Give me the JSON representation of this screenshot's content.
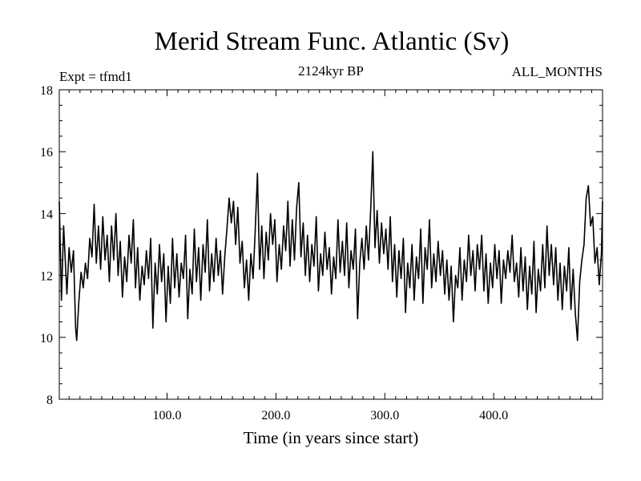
{
  "chart_data": {
    "type": "line",
    "title": "Merid Stream Func. Atlantic (Sv)",
    "subtitle_left": "Expt = tfmd1",
    "subtitle_center": "2124kyr BP",
    "subtitle_right": "ALL_MONTHS",
    "xlabel": "Time (in years since start)",
    "ylabel": "",
    "xlim": [
      1,
      500
    ],
    "ylim": [
      8,
      18
    ],
    "xticks": [
      100,
      200,
      300,
      400
    ],
    "xtick_labels": [
      "100.0",
      "200.0",
      "300.0",
      "400.0"
    ],
    "yticks": [
      8,
      10,
      12,
      14,
      16,
      18
    ],
    "ytick_labels": [
      "8",
      "10",
      "12",
      "14",
      "16",
      "18"
    ],
    "series": [
      {
        "name": "Merid Stream Func. Atlantic",
        "color": "#000000",
        "points": [
          [
            1,
            14.4
          ],
          [
            3,
            11.2
          ],
          [
            5,
            13.6
          ],
          [
            8,
            11.4
          ],
          [
            10,
            12.9
          ],
          [
            12,
            12.1
          ],
          [
            14,
            12.8
          ],
          [
            16,
            10.3
          ],
          [
            17,
            9.9
          ],
          [
            19,
            11.2
          ],
          [
            21,
            12.1
          ],
          [
            23,
            11.6
          ],
          [
            25,
            12.4
          ],
          [
            27,
            11.9
          ],
          [
            29,
            13.2
          ],
          [
            31,
            12.6
          ],
          [
            33,
            14.3
          ],
          [
            35,
            12.4
          ],
          [
            37,
            13.6
          ],
          [
            39,
            12.2
          ],
          [
            41,
            13.9
          ],
          [
            43,
            12.5
          ],
          [
            45,
            13.3
          ],
          [
            47,
            11.8
          ],
          [
            49,
            13.6
          ],
          [
            51,
            12.5
          ],
          [
            53,
            14.0
          ],
          [
            55,
            12.0
          ],
          [
            57,
            13.1
          ],
          [
            59,
            11.3
          ],
          [
            61,
            12.6
          ],
          [
            63,
            11.8
          ],
          [
            65,
            13.3
          ],
          [
            67,
            12.4
          ],
          [
            69,
            13.8
          ],
          [
            71,
            11.6
          ],
          [
            73,
            12.9
          ],
          [
            75,
            11.2
          ],
          [
            77,
            12.3
          ],
          [
            79,
            11.7
          ],
          [
            81,
            12.8
          ],
          [
            83,
            11.9
          ],
          [
            85,
            13.2
          ],
          [
            87,
            10.3
          ],
          [
            89,
            12.4
          ],
          [
            91,
            11.4
          ],
          [
            93,
            13.0
          ],
          [
            95,
            11.8
          ],
          [
            97,
            12.7
          ],
          [
            99,
            10.5
          ],
          [
            101,
            12.3
          ],
          [
            103,
            11.1
          ],
          [
            105,
            13.2
          ],
          [
            107,
            11.6
          ],
          [
            109,
            12.7
          ],
          [
            111,
            11.3
          ],
          [
            113,
            12.4
          ],
          [
            115,
            11.9
          ],
          [
            117,
            13.3
          ],
          [
            119,
            10.6
          ],
          [
            121,
            12.2
          ],
          [
            123,
            11.4
          ],
          [
            125,
            13.5
          ],
          [
            127,
            11.8
          ],
          [
            129,
            12.9
          ],
          [
            131,
            11.2
          ],
          [
            133,
            13.0
          ],
          [
            135,
            12.1
          ],
          [
            137,
            13.8
          ],
          [
            139,
            11.5
          ],
          [
            141,
            12.7
          ],
          [
            143,
            11.8
          ],
          [
            145,
            13.2
          ],
          [
            147,
            12.0
          ],
          [
            149,
            12.8
          ],
          [
            151,
            11.4
          ],
          [
            153,
            12.6
          ],
          [
            155,
            13.5
          ],
          [
            157,
            14.5
          ],
          [
            159,
            13.7
          ],
          [
            161,
            14.4
          ],
          [
            163,
            13.0
          ],
          [
            165,
            14.2
          ],
          [
            167,
            12.4
          ],
          [
            169,
            13.1
          ],
          [
            171,
            11.6
          ],
          [
            173,
            12.5
          ],
          [
            175,
            11.2
          ],
          [
            177,
            12.7
          ],
          [
            179,
            11.9
          ],
          [
            181,
            13.5
          ],
          [
            183,
            15.3
          ],
          [
            185,
            12.2
          ],
          [
            187,
            13.6
          ],
          [
            189,
            11.9
          ],
          [
            191,
            13.4
          ],
          [
            193,
            12.5
          ],
          [
            195,
            14.0
          ],
          [
            197,
            13.0
          ],
          [
            199,
            13.8
          ],
          [
            201,
            11.8
          ],
          [
            203,
            13.0
          ],
          [
            205,
            12.2
          ],
          [
            207,
            13.6
          ],
          [
            209,
            12.8
          ],
          [
            211,
            14.4
          ],
          [
            213,
            12.3
          ],
          [
            215,
            13.8
          ],
          [
            217,
            12.5
          ],
          [
            219,
            14.2
          ],
          [
            221,
            15.0
          ],
          [
            223,
            12.6
          ],
          [
            225,
            13.7
          ],
          [
            227,
            12.0
          ],
          [
            229,
            13.3
          ],
          [
            231,
            11.8
          ],
          [
            233,
            13.0
          ],
          [
            235,
            12.3
          ],
          [
            237,
            13.9
          ],
          [
            239,
            11.5
          ],
          [
            241,
            12.7
          ],
          [
            243,
            12.0
          ],
          [
            245,
            13.4
          ],
          [
            247,
            12.2
          ],
          [
            249,
            12.9
          ],
          [
            251,
            11.4
          ],
          [
            253,
            12.6
          ],
          [
            255,
            11.9
          ],
          [
            257,
            13.8
          ],
          [
            259,
            12.1
          ],
          [
            261,
            13.1
          ],
          [
            263,
            12.0
          ],
          [
            265,
            13.7
          ],
          [
            267,
            11.6
          ],
          [
            269,
            12.8
          ],
          [
            271,
            12.2
          ],
          [
            273,
            13.5
          ],
          [
            275,
            10.6
          ],
          [
            277,
            12.4
          ],
          [
            279,
            13.2
          ],
          [
            281,
            12.2
          ],
          [
            283,
            13.6
          ],
          [
            285,
            12.5
          ],
          [
            287,
            14.1
          ],
          [
            289,
            16.0
          ],
          [
            291,
            12.9
          ],
          [
            293,
            14.1
          ],
          [
            295,
            12.4
          ],
          [
            297,
            13.7
          ],
          [
            299,
            12.7
          ],
          [
            301,
            13.5
          ],
          [
            303,
            12.2
          ],
          [
            305,
            13.9
          ],
          [
            307,
            11.8
          ],
          [
            309,
            13.0
          ],
          [
            311,
            11.3
          ],
          [
            313,
            12.8
          ],
          [
            315,
            11.9
          ],
          [
            317,
            13.2
          ],
          [
            319,
            10.8
          ],
          [
            321,
            12.4
          ],
          [
            323,
            11.6
          ],
          [
            325,
            13.0
          ],
          [
            327,
            11.2
          ],
          [
            329,
            12.6
          ],
          [
            331,
            11.9
          ],
          [
            333,
            13.5
          ],
          [
            335,
            11.1
          ],
          [
            337,
            12.9
          ],
          [
            339,
            12.2
          ],
          [
            341,
            13.8
          ],
          [
            343,
            11.6
          ],
          [
            345,
            12.7
          ],
          [
            347,
            11.8
          ],
          [
            349,
            13.1
          ],
          [
            351,
            12.0
          ],
          [
            353,
            12.8
          ],
          [
            355,
            11.4
          ],
          [
            357,
            12.5
          ],
          [
            359,
            11.2
          ],
          [
            361,
            12.3
          ],
          [
            363,
            10.5
          ],
          [
            365,
            12.0
          ],
          [
            367,
            11.6
          ],
          [
            369,
            12.9
          ],
          [
            371,
            11.2
          ],
          [
            373,
            12.5
          ],
          [
            375,
            11.8
          ],
          [
            377,
            13.3
          ],
          [
            379,
            12.0
          ],
          [
            381,
            12.8
          ],
          [
            383,
            11.5
          ],
          [
            385,
            13.0
          ],
          [
            387,
            12.2
          ],
          [
            389,
            13.3
          ],
          [
            391,
            11.5
          ],
          [
            393,
            12.7
          ],
          [
            395,
            11.1
          ],
          [
            397,
            12.4
          ],
          [
            399,
            11.6
          ],
          [
            401,
            13.0
          ],
          [
            403,
            11.9
          ],
          [
            405,
            12.8
          ],
          [
            407,
            11.1
          ],
          [
            409,
            12.5
          ],
          [
            411,
            11.9
          ],
          [
            413,
            12.8
          ],
          [
            415,
            12.1
          ],
          [
            417,
            13.3
          ],
          [
            419,
            11.8
          ],
          [
            421,
            12.4
          ],
          [
            423,
            11.3
          ],
          [
            425,
            12.9
          ],
          [
            427,
            11.5
          ],
          [
            429,
            12.6
          ],
          [
            431,
            10.9
          ],
          [
            433,
            12.3
          ],
          [
            435,
            11.4
          ],
          [
            437,
            13.1
          ],
          [
            439,
            10.8
          ],
          [
            441,
            12.2
          ],
          [
            443,
            11.5
          ],
          [
            445,
            13.0
          ],
          [
            447,
            11.6
          ],
          [
            449,
            13.6
          ],
          [
            451,
            12.0
          ],
          [
            453,
            13.0
          ],
          [
            455,
            11.7
          ],
          [
            457,
            12.9
          ],
          [
            459,
            11.2
          ],
          [
            461,
            12.4
          ],
          [
            463,
            10.9
          ],
          [
            465,
            12.3
          ],
          [
            467,
            11.5
          ],
          [
            469,
            12.9
          ],
          [
            471,
            10.9
          ],
          [
            473,
            12.2
          ],
          [
            475,
            10.8
          ],
          [
            477,
            9.9
          ],
          [
            479,
            11.8
          ],
          [
            481,
            12.5
          ],
          [
            483,
            13.0
          ],
          [
            485,
            14.5
          ],
          [
            487,
            14.9
          ],
          [
            489,
            13.6
          ],
          [
            491,
            13.9
          ],
          [
            493,
            12.4
          ],
          [
            495,
            12.9
          ],
          [
            497,
            11.7
          ],
          [
            499,
            12.7
          ],
          [
            500,
            14.4
          ]
        ]
      }
    ]
  }
}
